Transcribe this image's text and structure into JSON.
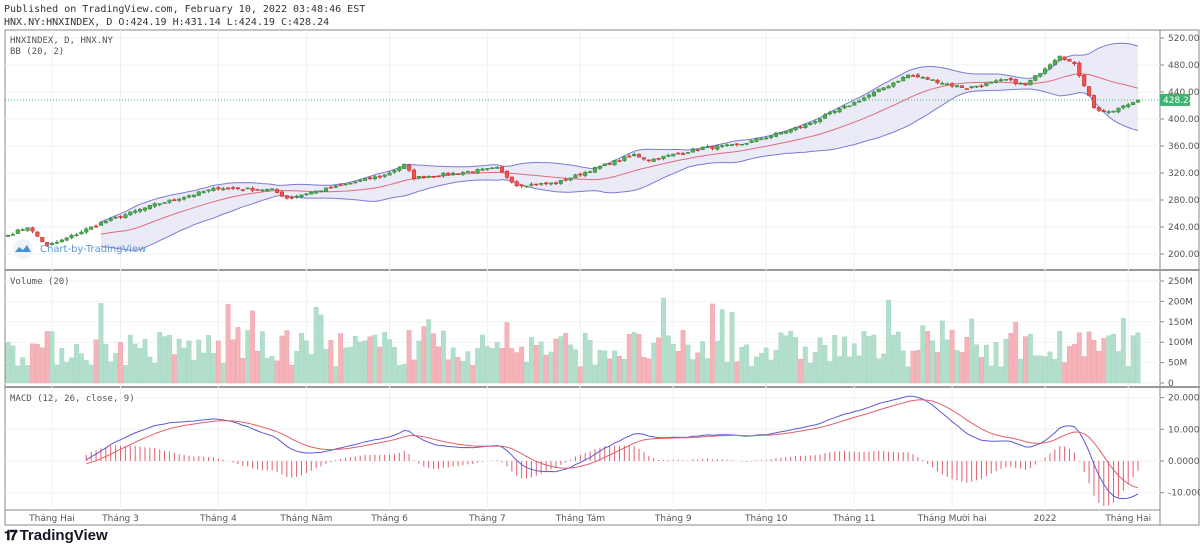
{
  "header": {
    "published": "Published on TradingView.com, February 10, 2022 03:48:46 EST",
    "ohlc": "HNX.NY:HNXINDEX, D O:424.19 H:431.14 L:424.19 C:428.24"
  },
  "footer": {
    "brand": "TradingView"
  },
  "watermark": "Chart-by-TradingView",
  "colors": {
    "up": "#26a69a",
    "up_body": "#4caf50",
    "down": "#ef5350",
    "vol_up": "#b2dfcb",
    "vol_down": "#f5b3ba",
    "bb_band": "#7b7bd1",
    "bb_basis": "#e06b7a",
    "bb_fill": "#e6e6f5",
    "macd": "#5b5bd6",
    "signal": "#e0606e",
    "price_tag": "#3cb371"
  },
  "chart_data": [
    {
      "type": "candlestick",
      "title": "HNXINDEX, D, HNX.NY",
      "indicator": "BB (20, 2)",
      "last_price": "428.24",
      "ylim": [
        190,
        525
      ],
      "yticks": [
        "520.00",
        "480.00",
        "440.00",
        "400.00",
        "360.00",
        "320.00",
        "280.00",
        "240.00",
        "200.00"
      ],
      "ytick_values": [
        520,
        480,
        440,
        400,
        360,
        320,
        280,
        240,
        200
      ],
      "key_closes": [
        [
          0,
          228
        ],
        [
          4,
          240
        ],
        [
          8,
          212
        ],
        [
          11,
          220
        ],
        [
          19,
          246
        ],
        [
          30,
          273
        ],
        [
          43,
          298
        ],
        [
          54,
          295
        ],
        [
          57,
          283
        ],
        [
          66,
          298
        ],
        [
          77,
          317
        ],
        [
          81,
          332
        ],
        [
          83,
          313
        ],
        [
          93,
          321
        ],
        [
          100,
          327
        ],
        [
          104,
          302
        ],
        [
          112,
          305
        ],
        [
          122,
          332
        ],
        [
          128,
          347
        ],
        [
          131,
          339
        ],
        [
          142,
          357
        ],
        [
          149,
          361
        ],
        [
          155,
          373
        ],
        [
          163,
          391
        ],
        [
          173,
          424
        ],
        [
          184,
          465
        ],
        [
          187,
          461
        ],
        [
          193,
          450
        ],
        [
          196,
          446
        ],
        [
          204,
          458
        ],
        [
          208,
          450
        ],
        [
          215,
          495
        ],
        [
          218,
          480
        ],
        [
          221,
          436
        ],
        [
          222,
          416
        ],
        [
          225,
          409
        ],
        [
          231,
          428
        ]
      ]
    },
    {
      "type": "bar",
      "title": "Volume (20)",
      "yticks": [
        "250M",
        "200M",
        "150M",
        "100M",
        "50M",
        "0"
      ],
      "ytick_values": [
        250,
        200,
        150,
        100,
        50,
        0
      ],
      "unit": "M"
    },
    {
      "type": "line",
      "title": "MACD (12, 26, close, 9)",
      "yticks": [
        "20.0000",
        "10.0000",
        "0.0000",
        "-10.0000"
      ],
      "ytick_values": [
        20,
        10,
        0,
        -10
      ]
    }
  ],
  "xaxis": {
    "labels": [
      {
        "text": "Tháng Hai",
        "day": 9
      },
      {
        "text": "Tháng 3",
        "day": 23
      },
      {
        "text": "Tháng 4",
        "day": 43
      },
      {
        "text": "Tháng Năm",
        "day": 61
      },
      {
        "text": "Tháng 6",
        "day": 78
      },
      {
        "text": "Tháng 7",
        "day": 98
      },
      {
        "text": "Tháng Tám",
        "day": 117
      },
      {
        "text": "Tháng 9",
        "day": 136
      },
      {
        "text": "Tháng 10",
        "day": 155
      },
      {
        "text": "Tháng 11",
        "day": 173
      },
      {
        "text": "Tháng Mười hai",
        "day": 193
      },
      {
        "text": "2022",
        "day": 212
      },
      {
        "text": "Tháng Hai",
        "day": 229
      }
    ]
  }
}
